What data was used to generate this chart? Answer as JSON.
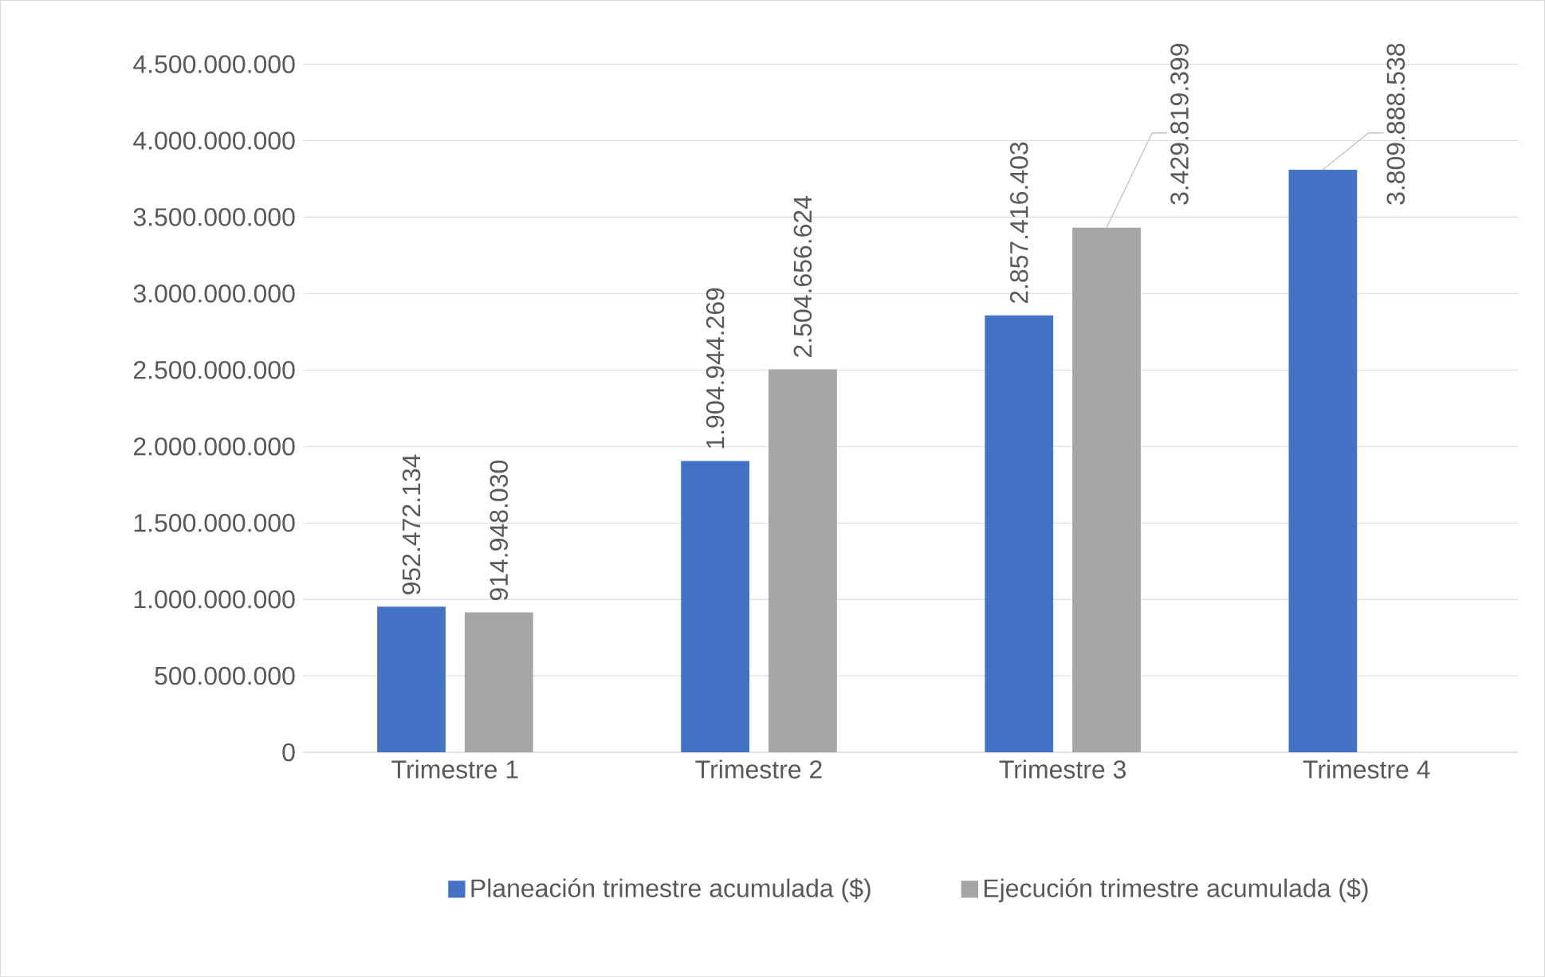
{
  "chart_data": {
    "type": "bar",
    "categories": [
      "Trimestre 1",
      "Trimestre 2",
      "Trimestre 3",
      "Trimestre 4"
    ],
    "series": [
      {
        "name": "Planeación trimestre acumulada ($)",
        "color": "#4472c4",
        "values": [
          952472134,
          1904944269,
          2857416403,
          3809888538
        ],
        "value_labels": [
          "952.472.134",
          "1.904.944.269",
          "2.857.416.403",
          "3.809.888.538"
        ]
      },
      {
        "name": "Ejecución trimestre acumulada ($)",
        "color": "#a5a5a5",
        "values": [
          914948030,
          2504656624,
          3429819399,
          null
        ],
        "value_labels": [
          "914.948.030",
          "2.504.656.624",
          "3.429.819.399",
          null
        ]
      }
    ],
    "ylim": [
      0,
      4500000000
    ],
    "yticks": [
      0,
      {
        "value": 500000000,
        "label": "500.000.000"
      },
      {
        "value": 1000000000,
        "label": "1.000.000.000"
      },
      {
        "value": 1500000000,
        "label": "1.500.000.000"
      },
      {
        "value": 2000000000,
        "label": "2.000.000.000"
      },
      {
        "value": 2500000000,
        "label": "2.500.000.000"
      },
      {
        "value": 3000000000,
        "label": "3.000.000.000"
      },
      {
        "value": 3500000000,
        "label": "3.500.000.000"
      },
      {
        "value": 4000000000,
        "label": "4.000.000.000"
      },
      {
        "value": 4500000000,
        "label": "4.500.000.000"
      }
    ],
    "grid": "y",
    "legend": "bottom"
  }
}
